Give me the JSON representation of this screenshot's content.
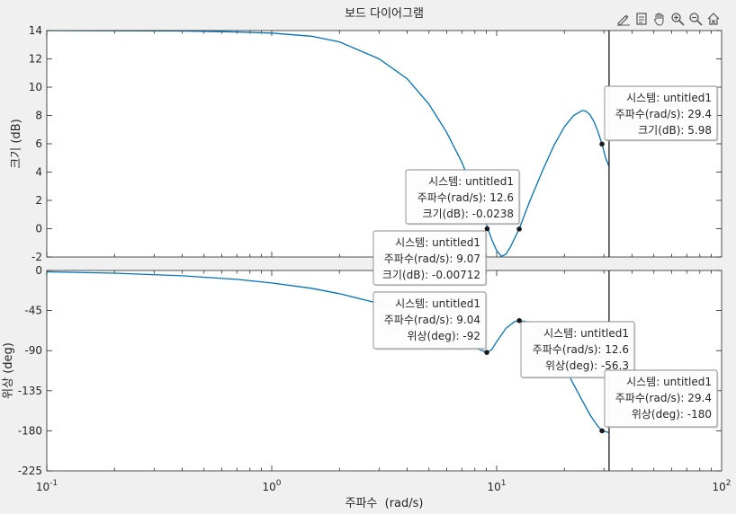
{
  "title": "보드 다이어그램",
  "toolbar": [
    {
      "name": "edit-plot-icon"
    },
    {
      "name": "export-icon"
    },
    {
      "name": "pan-hand-icon"
    },
    {
      "name": "zoom-in-icon"
    },
    {
      "name": "zoom-out-icon"
    },
    {
      "name": "home-icon"
    }
  ],
  "chart_data": [
    {
      "type": "line",
      "panel": "magnitude",
      "title": "보드 다이어그램",
      "xlabel": "",
      "ylabel": "크기 (dB)",
      "xscale": "log",
      "xlim": [
        0.1,
        100
      ],
      "ylim": [
        -2,
        14
      ],
      "yticks": [
        -2,
        0,
        2,
        4,
        6,
        8,
        10,
        12,
        14
      ],
      "grid": false,
      "series_color": "#0072BD",
      "x": [
        0.1,
        0.2,
        0.4,
        0.7,
        1,
        1.5,
        2,
        3,
        4,
        5,
        6,
        7,
        8,
        9,
        9.5,
        10,
        10.5,
        11,
        11.5,
        12,
        12.6,
        14,
        16,
        18,
        20,
        22,
        24,
        25,
        26,
        27,
        28,
        29.4,
        30.5,
        31.6
      ],
      "values": [
        14,
        13.99,
        13.97,
        13.9,
        13.82,
        13.6,
        13.2,
        12.0,
        10.6,
        8.8,
        6.8,
        4.7,
        2.4,
        0.3,
        -0.75,
        -1.55,
        -1.95,
        -1.8,
        -1.3,
        -0.7,
        0.0,
        1.9,
        4.1,
        5.9,
        7.2,
        8.0,
        8.35,
        8.3,
        8.05,
        7.6,
        7.0,
        5.98,
        5.0,
        4.4
      ],
      "markers": [
        {
          "x": 9.07,
          "y": -0.00712
        },
        {
          "x": 12.6,
          "y": -0.0238
        },
        {
          "x": 29.4,
          "y": 5.98
        }
      ],
      "vertical_line_x": 31.6,
      "datatips": [
        {
          "lines": [
            "시스템: untitled1",
            "주파수(rad/s): 9.07",
            "크기(dB): -0.00712"
          ]
        },
        {
          "lines": [
            "시스템: untitled1",
            "주파수(rad/s): 12.6",
            "크기(dB): -0.0238"
          ]
        },
        {
          "lines": [
            "시스템: untitled1",
            "주파수(rad/s): 29.4",
            "크기(dB): 5.98"
          ]
        }
      ]
    },
    {
      "type": "line",
      "panel": "phase",
      "xlabel": "주파수  (rad/s)",
      "ylabel": "위상 (deg)",
      "xscale": "log",
      "xlim": [
        0.1,
        100
      ],
      "ylim": [
        -225,
        0
      ],
      "yticks": [
        0,
        -45,
        -90,
        -135,
        -180,
        -225
      ],
      "xtick_labels": [
        {
          "value": 0.1,
          "mantissa": "10",
          "exp": "-1"
        },
        {
          "value": 1,
          "mantissa": "10",
          "exp": "0"
        },
        {
          "value": 10,
          "mantissa": "10",
          "exp": "1"
        },
        {
          "value": 100,
          "mantissa": "10",
          "exp": "2"
        }
      ],
      "grid": false,
      "series_color": "#0072BD",
      "x": [
        0.1,
        0.2,
        0.4,
        0.7,
        1,
        1.5,
        2,
        3,
        4,
        5,
        6,
        7,
        8,
        8.5,
        9.04,
        9.5,
        10,
        11,
        12,
        12.6,
        14,
        16,
        18,
        20,
        22,
        24,
        26,
        28,
        29.4,
        30.5,
        31.6
      ],
      "values": [
        -1.5,
        -3,
        -6,
        -10,
        -14,
        -20,
        -26,
        -37,
        -47,
        -57,
        -67,
        -77,
        -86,
        -89.5,
        -92,
        -89,
        -80,
        -65,
        -57.5,
        -56.3,
        -58,
        -70,
        -88,
        -108,
        -128,
        -146,
        -162,
        -174,
        -180,
        -181,
        -182
      ],
      "markers": [
        {
          "x": 9.04,
          "y": -92
        },
        {
          "x": 12.6,
          "y": -56.3
        },
        {
          "x": 29.4,
          "y": -180
        }
      ],
      "vertical_line_x": 31.6,
      "datatips": [
        {
          "lines": [
            "시스템: untitled1",
            "주파수(rad/s): 9.04",
            "위상(deg): -92"
          ]
        },
        {
          "lines": [
            "시스템: untitled1",
            "주파수(rad/s): 12.6",
            "위상(deg): -56.3"
          ]
        },
        {
          "lines": [
            "시스템: untitled1",
            "주파수(rad/s): 29.4",
            "위상(deg): -180"
          ]
        }
      ]
    }
  ]
}
